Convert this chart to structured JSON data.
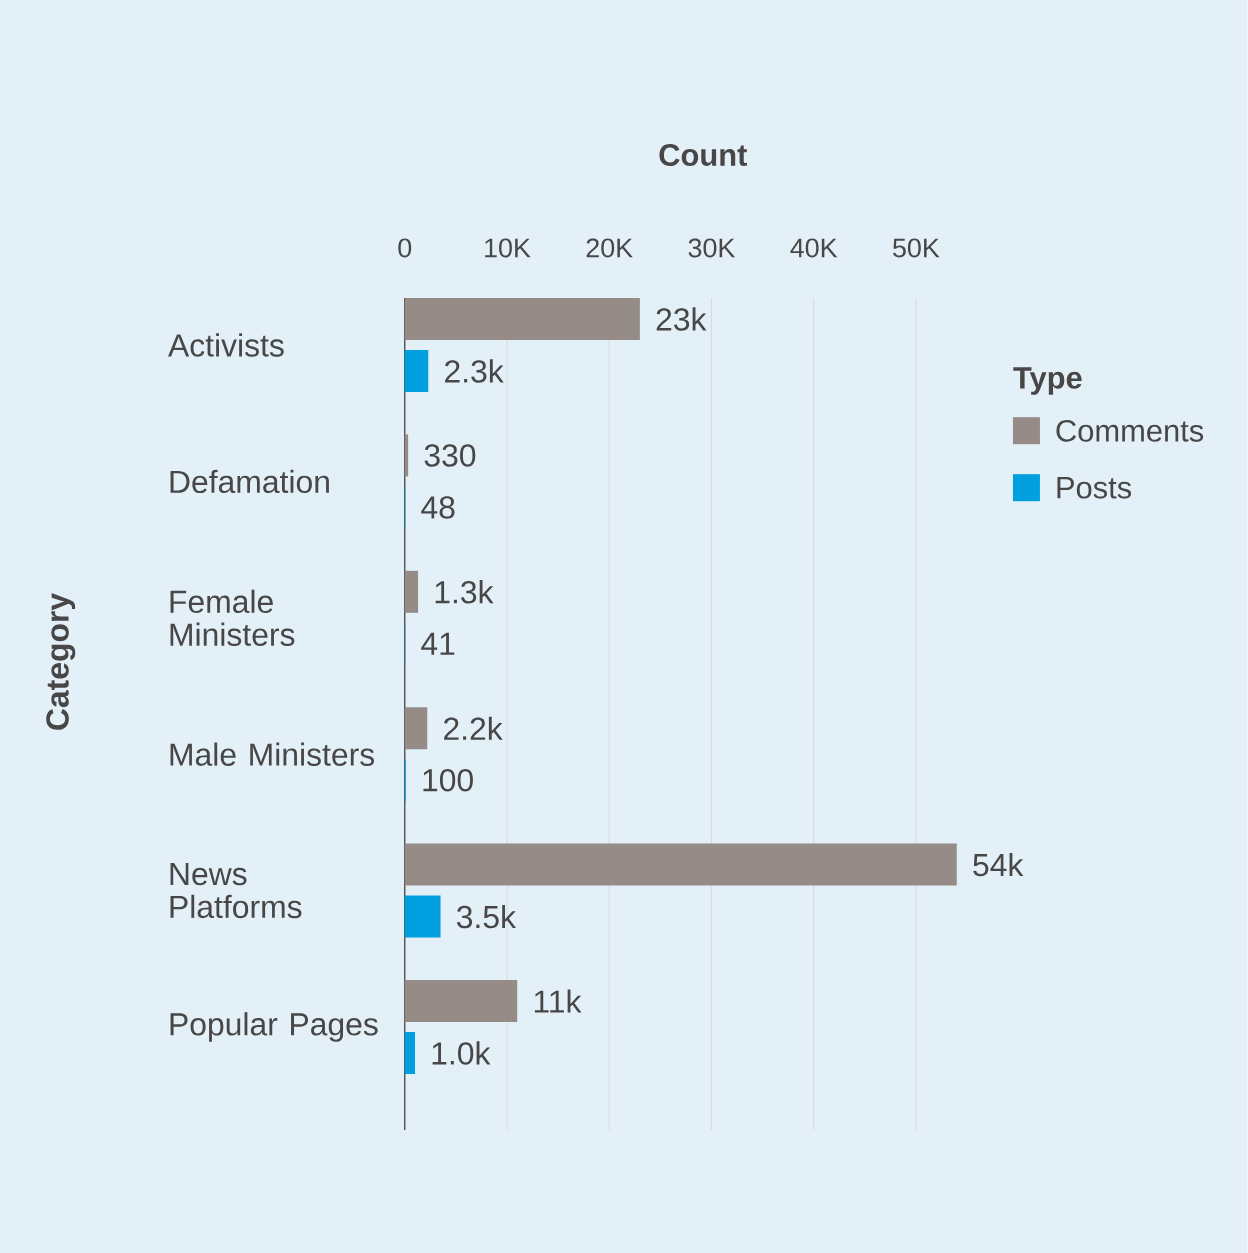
{
  "chart_data": {
    "type": "bar",
    "orientation": "horizontal",
    "xlabel": "Count",
    "ylabel": "Category",
    "legend_title": "Type",
    "categories": [
      "Activists",
      "Defamation",
      "Female Ministers",
      "Male Ministers",
      "News Platforms",
      "Popular Pages"
    ],
    "series": [
      {
        "name": "Comments",
        "color": "#958c88",
        "values": [
          23000,
          330,
          1300,
          2200,
          54000,
          11000
        ],
        "value_labels": [
          "23k",
          "330",
          "1.3k",
          "2.2k",
          "54k",
          "11k"
        ]
      },
      {
        "name": "Posts",
        "color": "#00a0e0",
        "values": [
          2300,
          48,
          41,
          100,
          3500,
          1000
        ],
        "value_labels": [
          "2.3k",
          "48",
          "41",
          "100",
          "3.5k",
          "1.0k"
        ]
      }
    ],
    "xlim": [
      0,
      54000
    ],
    "xticks": [
      0,
      {
        "value": 10000,
        "label": "10K"
      },
      {
        "value": 20000,
        "label": "20K"
      },
      {
        "value": 30000,
        "label": "30K"
      },
      {
        "value": 40000,
        "label": "40K"
      },
      {
        "value": 50000,
        "label": "50K"
      }
    ],
    "grid": "x",
    "legend": "right"
  }
}
